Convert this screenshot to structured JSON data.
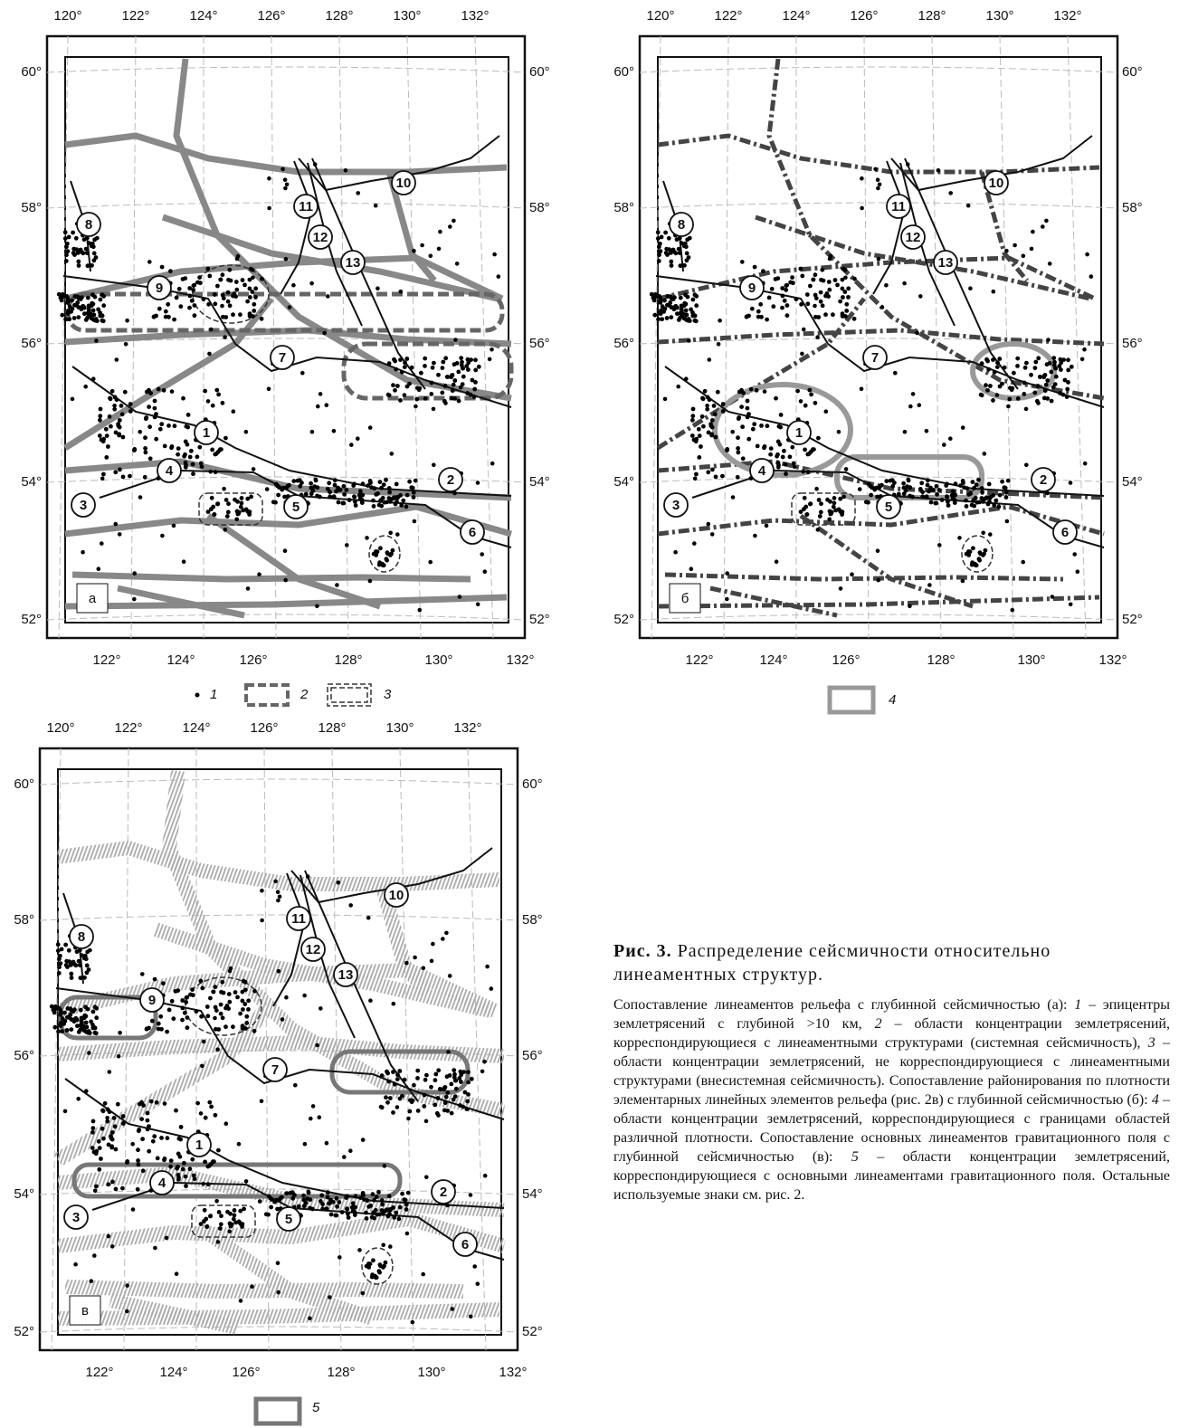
{
  "panels": [
    {
      "letter": "а",
      "top": [
        "120°",
        "122°",
        "124°",
        "126°",
        "128°",
        "130°",
        "132°"
      ],
      "left": [
        "60°",
        "58°",
        "56°",
        "54°",
        "52°"
      ],
      "right": [
        "60°",
        "58°",
        "56°",
        "54°",
        "52°"
      ],
      "bottom": [
        "122°",
        "124°",
        "126°",
        "128°",
        "130°",
        "132°"
      ],
      "markers": [
        "1",
        "2",
        "3",
        "4",
        "5",
        "6",
        "7",
        "8",
        "9",
        "10",
        "11",
        "12",
        "13"
      ]
    },
    {
      "letter": "б",
      "top": [
        "120°",
        "122°",
        "124°",
        "126°",
        "128°",
        "130°",
        "132°"
      ],
      "left": [
        "60°",
        "58°",
        "56°",
        "54°",
        "52°"
      ],
      "right": [
        "60°",
        "58°",
        "56°",
        "54°",
        "52°"
      ],
      "bottom": [
        "122°",
        "124°",
        "126°",
        "128°",
        "130°",
        "132°"
      ],
      "markers": [
        "1",
        "2",
        "3",
        "4",
        "5",
        "6",
        "7",
        "8",
        "9",
        "10",
        "11",
        "12",
        "13"
      ]
    },
    {
      "letter": "в",
      "top": [
        "120°",
        "122°",
        "124°",
        "126°",
        "128°",
        "130°",
        "132°"
      ],
      "left": [
        "60°",
        "58°",
        "56°",
        "54°",
        "52°"
      ],
      "right": [
        "60°",
        "58°",
        "56°",
        "54°",
        "52°"
      ],
      "bottom": [
        "122°",
        "124°",
        "126°",
        "128°",
        "130°",
        "132°"
      ],
      "markers": [
        "1",
        "2",
        "3",
        "4",
        "5",
        "6",
        "7",
        "8",
        "9",
        "10",
        "11",
        "12",
        "13"
      ]
    }
  ],
  "legends": [
    {
      "items": [
        "1",
        "2",
        "3"
      ]
    },
    {
      "items": [
        "4"
      ]
    },
    {
      "items": [
        "5"
      ]
    }
  ],
  "caption": {
    "label": "Рис. 3.",
    "title": "Распределение сейсмичности относительно линеаментных структур.",
    "body": [
      "Сопоставление линеаментов рельефа с глубинной сейсмичностью (а): ",
      "1",
      " – эпицентры землетрясений с глубиной >10 км, ",
      "2",
      " – области концентрации землетрясений, корреспондирующиеся с линеаментными структурами (системная сейсмичность), ",
      "3",
      " – области концентрации землетрясений, не корреспондирующиеся с линеаментными структурами (внесистемная сейсмичность). Сопоставление районирования по плотности элементарных линейных элементов рельефа (рис. 2в) с глубинной сейсмичностью (б): ",
      "4",
      " – области концентрации землетрясений, корреспондирующиеся с границами областей различной плотности. Сопоставление основных линеаментов гравитационного поля с глубинной сейсмичностью (в): ",
      "5",
      " – области концентрации землетрясений, корреспондирующиеся с основными линеаментами гравитационного поля. Остальные используемые знаки см. рис. 2."
    ]
  }
}
